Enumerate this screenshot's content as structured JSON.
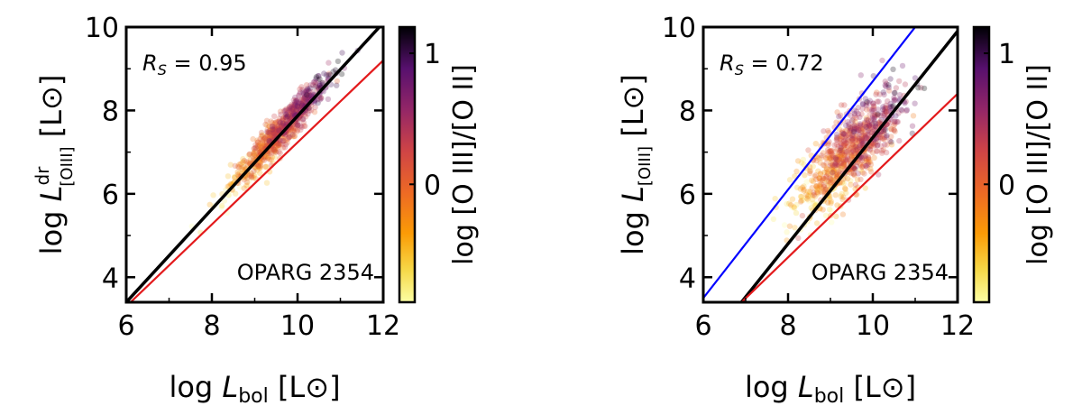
{
  "colorbar": {
    "label": "log [O III]/[O II]",
    "ticks": [
      0,
      1
    ],
    "range": [
      -0.9,
      1.2
    ],
    "colormap": "inferno_r"
  },
  "chart_data": [
    {
      "type": "scatter",
      "name": "left",
      "xlabel": "log L_bol [L_⊙]",
      "ylabel": "log L^dr_[OIII] [L_⊙]",
      "xlim": [
        6,
        12
      ],
      "ylim": [
        3.4,
        10
      ],
      "xticks": [
        6,
        8,
        10,
        12
      ],
      "yticks": [
        4,
        6,
        8,
        10
      ],
      "rs_label": "R_S = 0.95",
      "tag": "OPARG 2354",
      "lines": [
        {
          "color": "#000000",
          "points": [
            [
              6,
              3.4
            ],
            [
              12,
              10.1
            ]
          ]
        },
        {
          "color": "#e31a1c",
          "points": [
            [
              6,
              3.3
            ],
            [
              12,
              9.2
            ]
          ]
        }
      ],
      "cloud": {
        "n": 850,
        "x_mean": 9.6,
        "x_sd": 0.55,
        "relation": [
          1.12,
          -3.25
        ],
        "scatter_sd": 0.22,
        "color_base": 0.1,
        "color_slope": 0.55,
        "color_sd": 0.25
      }
    },
    {
      "type": "scatter",
      "name": "right",
      "xlabel": "log L_bol [L_⊙]",
      "ylabel": "log L_[OIII] [L_⊙]",
      "xlim": [
        6,
        12
      ],
      "ylim": [
        3.4,
        10
      ],
      "xticks": [
        6,
        8,
        10,
        12
      ],
      "yticks": [
        4,
        6,
        8,
        10
      ],
      "rs_label": "R_S = 0.72",
      "tag": "OPARG 2354",
      "lines": [
        {
          "color": "#0000ff",
          "points": [
            [
              6,
              3.5
            ],
            [
              11,
              10
            ]
          ]
        },
        {
          "color": "#000000",
          "points": [
            [
              6.9,
              3.4
            ],
            [
              12,
              9.9
            ]
          ]
        },
        {
          "color": "#e31a1c",
          "points": [
            [
              6.8,
              3.3
            ],
            [
              12,
              8.4
            ]
          ]
        }
      ],
      "cloud": {
        "n": 900,
        "x_mean": 9.5,
        "x_sd": 0.6,
        "relation": [
          0.95,
          -2.0
        ],
        "scatter_sd": 0.45,
        "color_base": 0.05,
        "color_slope": 0.45,
        "color_sd": 0.3
      }
    }
  ]
}
